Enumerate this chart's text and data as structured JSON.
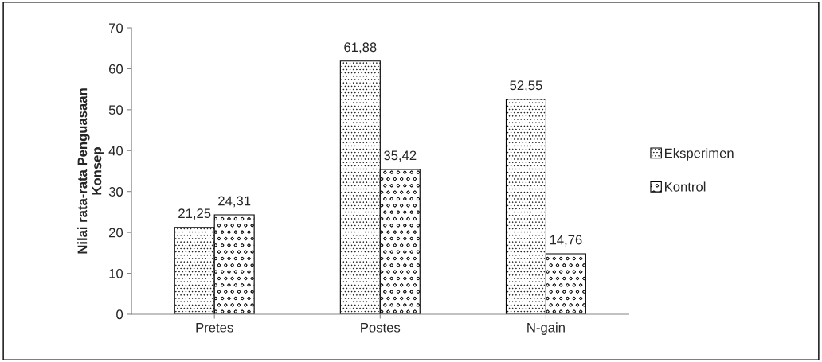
{
  "chart_data": {
    "type": "bar",
    "ylabel": "Nilai rata-rata Penguasaan\nKonsep",
    "categories": [
      "Pretes",
      "Postes",
      "N-gain"
    ],
    "series": [
      {
        "name": "Eksperimen",
        "color": "#000000",
        "values": [
          21.25,
          61.88,
          52.55
        ],
        "value_labels": [
          "21,25",
          "61,88",
          "52,55"
        ]
      },
      {
        "name": "Kontrol",
        "color": "#000000",
        "values": [
          24.31,
          35.42,
          14.76
        ],
        "value_labels": [
          "24,31",
          "35,42",
          "14,76"
        ]
      }
    ],
    "ylim": [
      0,
      70
    ],
    "yticks": [
      0,
      10,
      20,
      30,
      40,
      50,
      60,
      70
    ],
    "grid": false,
    "legend": "right"
  }
}
